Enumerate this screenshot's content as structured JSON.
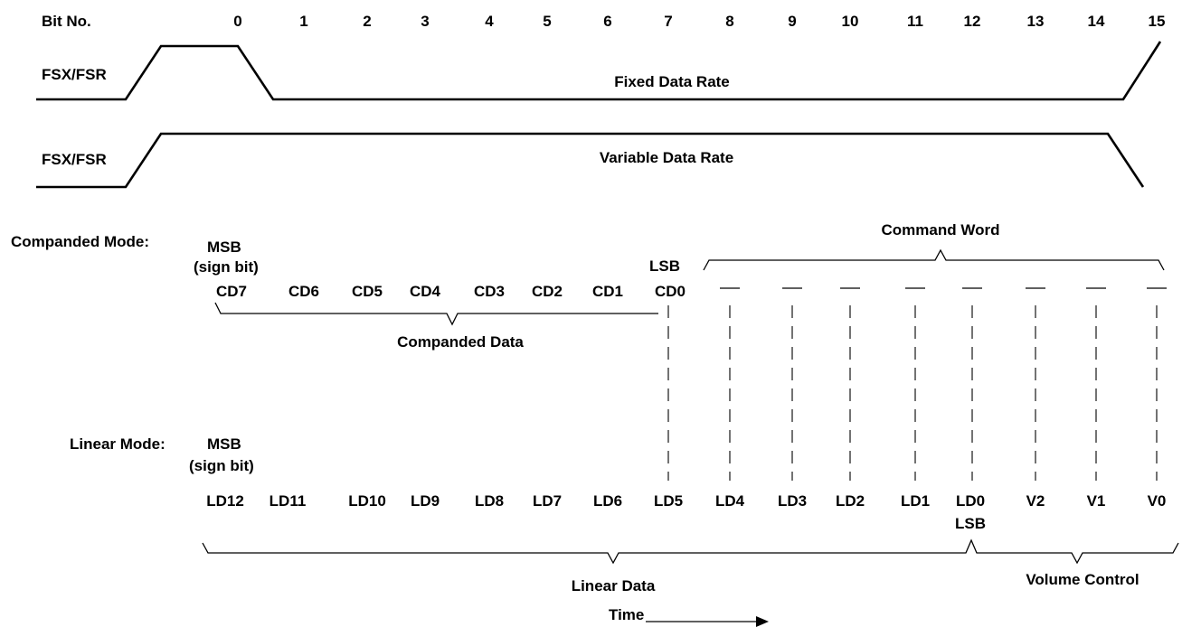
{
  "header": {
    "bit_no_label": "Bit No.",
    "bit_numbers": [
      "0",
      "1",
      "2",
      "3",
      "4",
      "5",
      "6",
      "7",
      "8",
      "9",
      "10",
      "11",
      "12",
      "13",
      "14",
      "15"
    ]
  },
  "fixed": {
    "signal_label": "FSX/FSR",
    "rate_label": "Fixed Data Rate"
  },
  "variable": {
    "signal_label": "FSX/FSR",
    "rate_label": "Variable Data Rate"
  },
  "companded": {
    "mode_label": "Companded Mode:",
    "msb_label": "MSB",
    "msb_sub": "(sign bit)",
    "lsb_label": "LSB",
    "bits": [
      "CD7",
      "CD6",
      "CD5",
      "CD4",
      "CD3",
      "CD2",
      "CD1",
      "CD0"
    ],
    "data_label": "Companded Data",
    "command_label": "Command Word"
  },
  "linear": {
    "mode_label": "Linear Mode:",
    "msb_label": "MSB",
    "msb_sub": "(sign bit)",
    "bits": [
      "LD12",
      "LD11",
      "LD10",
      "LD9",
      "LD8",
      "LD7",
      "LD6",
      "LD5",
      "LD4",
      "LD3",
      "LD2",
      "LD1",
      "LD0",
      "V2",
      "V1",
      "V0"
    ],
    "lsb_label": "LSB",
    "data_label": "Linear Data",
    "volume_label": "Volume Control"
  },
  "time_label": "Time"
}
